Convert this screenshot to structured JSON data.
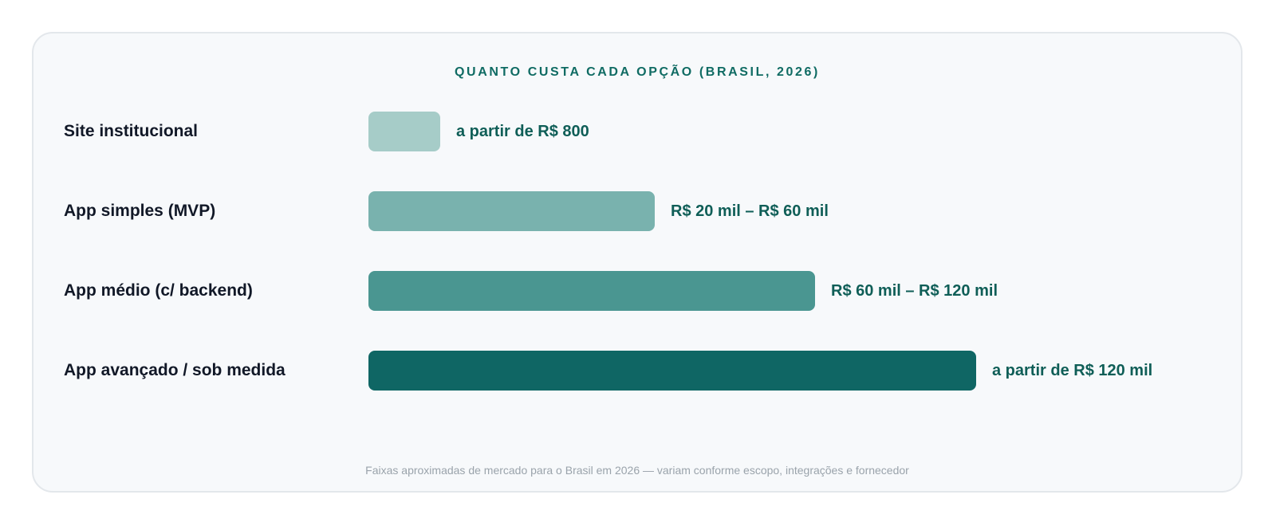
{
  "chart_data": {
    "type": "bar",
    "orientation": "horizontal",
    "title": "QUANTO CUSTA CADA OPÇÃO (BRASIL, 2026)",
    "categories": [
      "Site institucional",
      "App simples (MVP)",
      "App médio (c/ backend)",
      "App avançado / sob medida"
    ],
    "values": [
      1,
      4,
      6.25,
      8.5
    ],
    "value_labels": [
      "a partir de R$ 800",
      "R$ 20 mil – R$ 60 mil",
      "R$ 60 mil – R$ 120 mil",
      "a partir de R$ 120 mil"
    ],
    "colors": [
      "#a6ccc8",
      "#79b2ae",
      "#4a9691",
      "#0f6664"
    ],
    "xlim": [
      0,
      8.5
    ],
    "grid": false,
    "legend": "none",
    "footnote": "Faixas aproximadas de mercado para o Brasil em 2026 — variam conforme escopo, integrações e fornecedor"
  }
}
